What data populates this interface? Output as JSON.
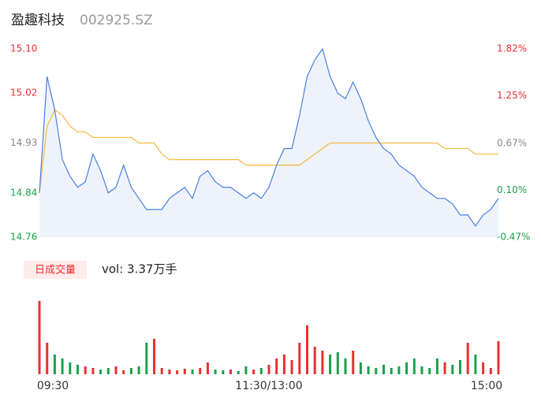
{
  "header": {
    "name": "盈趣科技",
    "code": "002925.SZ"
  },
  "chart_data": [
    {
      "type": "line",
      "x": [
        0,
        4,
        8,
        12,
        16,
        20,
        24,
        28,
        32,
        36,
        40,
        44,
        48,
        52,
        56,
        60,
        64,
        68,
        72,
        76,
        80,
        84,
        88,
        92,
        96,
        100,
        104,
        108,
        112,
        116,
        120,
        124,
        128,
        132,
        136,
        140,
        144,
        148,
        152,
        156,
        160,
        164,
        168,
        172,
        176,
        180,
        184,
        188,
        192,
        196,
        200,
        204,
        208,
        212,
        216,
        220,
        224,
        228,
        232,
        236,
        240
      ],
      "xlim": [
        0,
        240
      ],
      "ylim": [
        14.76,
        15.1
      ],
      "yticks": [
        {
          "value": 15.1,
          "label": "15.10"
        },
        15.02,
        14.93,
        14.84,
        14.76
      ],
      "y2lim": [
        -0.47,
        1.82
      ],
      "y2ticks": [
        {
          "value": 1.82,
          "label": "1.82%"
        },
        {
          "value": 1.25,
          "label": "1.25%"
        },
        {
          "value": 0.67,
          "label": "0.67%"
        },
        {
          "value": 0.1,
          "label": "0.10%"
        },
        {
          "value": -0.47,
          "label": "-0.47%"
        }
      ],
      "tick_colors": [
        "#e93030",
        "#e93030",
        "#888888",
        "#1aa14b",
        "#1aa14b"
      ],
      "area_color": "#eef3fb",
      "series": [
        {
          "color": "#4a7fe0",
          "values": [
            14.84,
            15.05,
            14.99,
            14.9,
            14.87,
            14.85,
            14.86,
            14.91,
            14.88,
            14.84,
            14.85,
            14.89,
            14.85,
            14.83,
            14.81,
            14.81,
            14.81,
            14.83,
            14.84,
            14.85,
            14.83,
            14.87,
            14.88,
            14.86,
            14.85,
            14.85,
            14.84,
            14.83,
            14.84,
            14.83,
            14.85,
            14.89,
            14.92,
            14.92,
            14.98,
            15.05,
            15.08,
            15.1,
            15.05,
            15.02,
            15.01,
            15.04,
            15.01,
            14.97,
            14.94,
            14.92,
            14.91,
            14.89,
            14.88,
            14.87,
            14.85,
            14.84,
            14.83,
            14.83,
            14.82,
            14.8,
            14.8,
            14.78,
            14.8,
            14.81,
            14.83
          ]
        },
        {
          "color": "#f5b942",
          "values": [
            14.84,
            14.96,
            14.99,
            14.98,
            14.96,
            14.95,
            14.95,
            14.94,
            14.94,
            14.94,
            14.94,
            14.94,
            14.94,
            14.93,
            14.93,
            14.93,
            14.91,
            14.9,
            14.9,
            14.9,
            14.9,
            14.9,
            14.9,
            14.9,
            14.9,
            14.9,
            14.9,
            14.89,
            14.89,
            14.89,
            14.89,
            14.89,
            14.89,
            14.89,
            14.89,
            14.9,
            14.91,
            14.92,
            14.93,
            14.93,
            14.93,
            14.93,
            14.93,
            14.93,
            14.93,
            14.93,
            14.93,
            14.93,
            14.93,
            14.93,
            14.93,
            14.93,
            14.93,
            14.92,
            14.92,
            14.92,
            14.92,
            14.91,
            14.91,
            14.91,
            14.91
          ]
        }
      ]
    },
    {
      "type": "bar",
      "label": "日成交量",
      "summary": "vol: 3.37万手",
      "x": [
        0,
        4,
        8,
        12,
        16,
        20,
        24,
        28,
        32,
        36,
        40,
        44,
        48,
        52,
        56,
        60,
        64,
        68,
        72,
        76,
        80,
        84,
        88,
        92,
        96,
        100,
        104,
        108,
        112,
        116,
        120,
        124,
        128,
        132,
        136,
        140,
        144,
        148,
        152,
        156,
        160,
        164,
        168,
        172,
        176,
        180,
        184,
        188,
        192,
        196,
        200,
        204,
        208,
        212,
        216,
        220,
        224,
        228,
        232,
        236,
        240
      ],
      "xlim": [
        0,
        240
      ],
      "xticks": [
        {
          "value": 0,
          "label": "09:30"
        },
        {
          "value": 120,
          "label": "11:30/13:00"
        },
        {
          "value": 240,
          "label": "15:00"
        }
      ],
      "up_color": "#e93030",
      "down_color": "#1aa14b",
      "values": [
        93,
        40,
        25,
        20,
        15,
        12,
        10,
        8,
        6,
        8,
        10,
        5,
        8,
        10,
        40,
        45,
        8,
        6,
        5,
        7,
        6,
        8,
        15,
        6,
        5,
        6,
        4,
        10,
        6,
        8,
        12,
        20,
        25,
        18,
        40,
        62,
        35,
        30,
        25,
        28,
        20,
        30,
        15,
        10,
        8,
        12,
        8,
        10,
        15,
        20,
        10,
        8,
        20,
        15,
        12,
        18,
        40,
        25,
        15,
        8,
        42
      ]
    }
  ]
}
